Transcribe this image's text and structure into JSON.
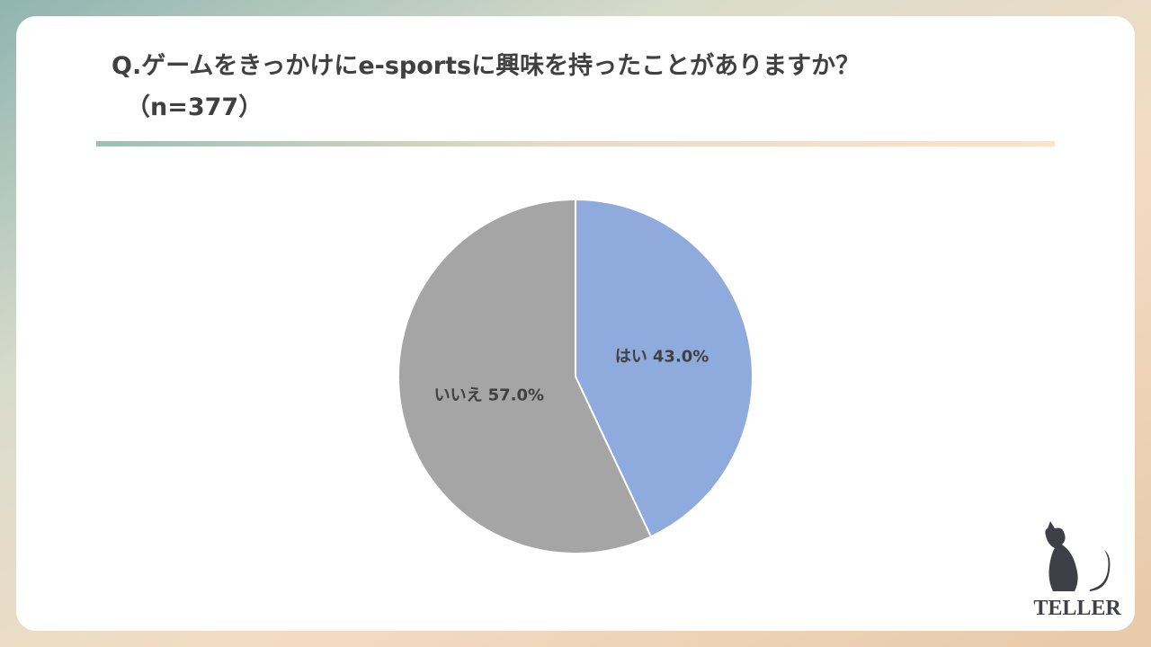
{
  "chart_data": {
    "type": "pie",
    "title": "Q.ゲームをきっかけにe-sportsに興味を持ったことがありますか？",
    "subtitle": "（n=377）",
    "categories": [
      "はい",
      "いいえ"
    ],
    "values": [
      43.0,
      57.0
    ],
    "value_labels": [
      "43.0%",
      "57.0%"
    ],
    "colors": [
      "#8faadc",
      "#a5a5a5"
    ]
  },
  "brand": "TELLER"
}
